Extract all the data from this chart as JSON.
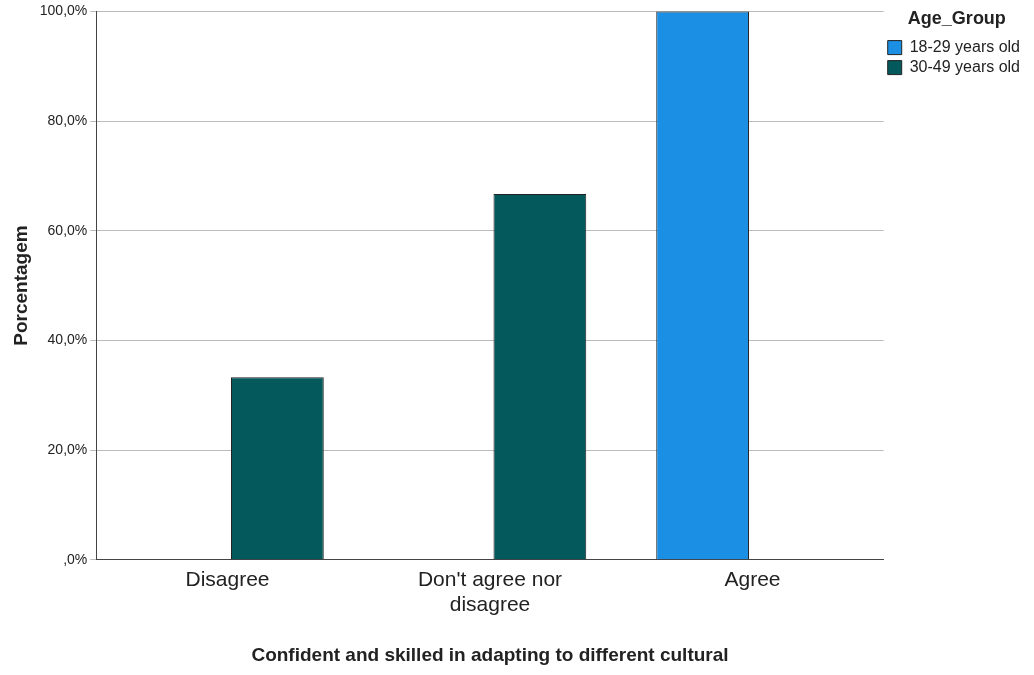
{
  "chart_data": {
    "type": "bar",
    "xlabel": "Confident and skilled in adapting to different cultural",
    "ylabel": "Porcentagem",
    "legend_title": "Age_Group",
    "categories": [
      "Disagree",
      "Don't agree nor disagree",
      "Agree"
    ],
    "series": [
      {
        "name": "18-29 years old",
        "color": "#1a8fe3",
        "values": [
          0,
          0,
          100
        ]
      },
      {
        "name": "30-49 years old",
        "color": "#03595b",
        "values": [
          33.3,
          66.7,
          0
        ]
      }
    ],
    "ylim": [
      0,
      100
    ],
    "yticks": [
      {
        "value": 0,
        "label": ",0%"
      },
      {
        "value": 20,
        "label": "20,0%"
      },
      {
        "value": 40,
        "label": "40,0%"
      },
      {
        "value": 60,
        "label": "60,0%"
      },
      {
        "value": 80,
        "label": "80,0%"
      },
      {
        "value": 100,
        "label": "100,0%"
      }
    ],
    "grid": "y",
    "legend": "top right"
  }
}
